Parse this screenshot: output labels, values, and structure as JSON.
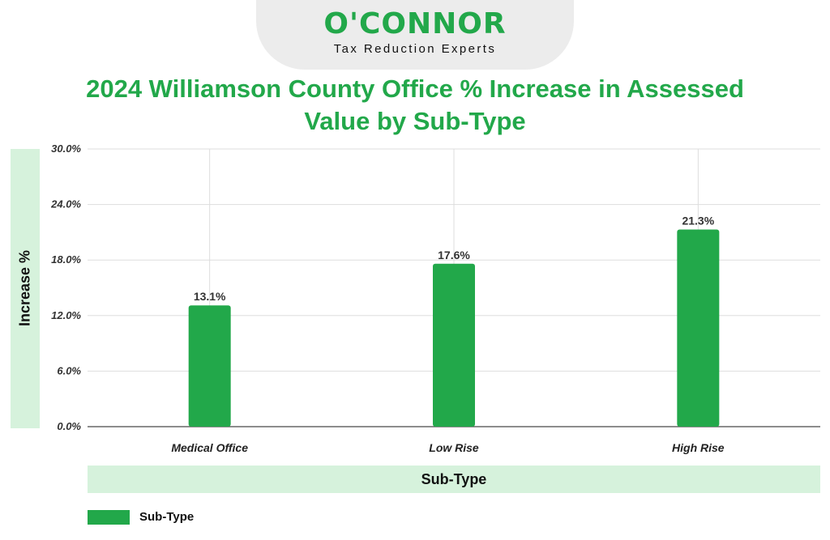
{
  "logo": {
    "name": "O'CONNOR",
    "tagline": "Tax Reduction Experts"
  },
  "chart_data": {
    "type": "bar",
    "title": "2024 Williamson County Office % Increase in Assessed Value by Sub-Type",
    "xlabel": "Sub-Type",
    "ylabel": "Increase %",
    "categories": [
      "Medical Office",
      "Low Rise",
      "High Rise"
    ],
    "series": [
      {
        "name": "Sub-Type",
        "values": [
          13.1,
          17.6,
          21.3
        ],
        "labels": [
          "13.1%",
          "17.6%",
          "21.3%"
        ]
      }
    ],
    "ylim": [
      0,
      30
    ],
    "yticks": [
      "0.0%",
      "6.0%",
      "12.0%",
      "18.0%",
      "24.0%",
      "30.0%"
    ],
    "grid": true,
    "legend": "bottom-left",
    "colors": {
      "bar": "#22a84a",
      "accent": "#22a84a",
      "label_band": "#d6f2dc"
    }
  }
}
